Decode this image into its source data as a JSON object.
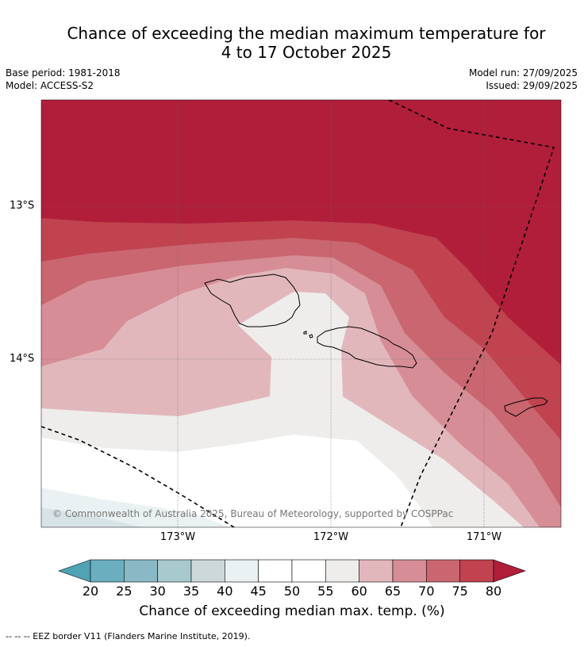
{
  "title_line1": "Chance of exceeding the median maximum temperature for",
  "title_line2": "4 to 17 October 2025",
  "base_period": "Base period: 1981-2018",
  "model": "Model: ACCESS-S2",
  "model_run": "Model run: 27/09/2025",
  "issued": "Issued: 29/09/2025",
  "lat_labels": [
    "13°S",
    "14°S"
  ],
  "lon_labels": [
    "173°W",
    "172°W",
    "171°W"
  ],
  "copyright": "© Commonwealth of Australia 2025, Bureau of Meteorology, supported by COSPPac",
  "colorbar": {
    "ticks": [
      "20",
      "25",
      "30",
      "35",
      "40",
      "45",
      "50",
      "55",
      "60",
      "65",
      "70",
      "75",
      "80"
    ],
    "title": "Chance of exceeding median max. temp. (%)",
    "colors": [
      "#4fa3b5",
      "#6aaebf",
      "#8ab9c5",
      "#a8c9ce",
      "#cdd8da",
      "#eaf1f2",
      "#ffffff",
      "#ffffff",
      "#eeedeb",
      "#e2b7bc",
      "#d68d95",
      "#c9666f",
      "#c0434f",
      "#b11e3a"
    ]
  },
  "footnote": "--  --  -- EEZ border V11 (Flanders Marine Institute, 2019)."
}
